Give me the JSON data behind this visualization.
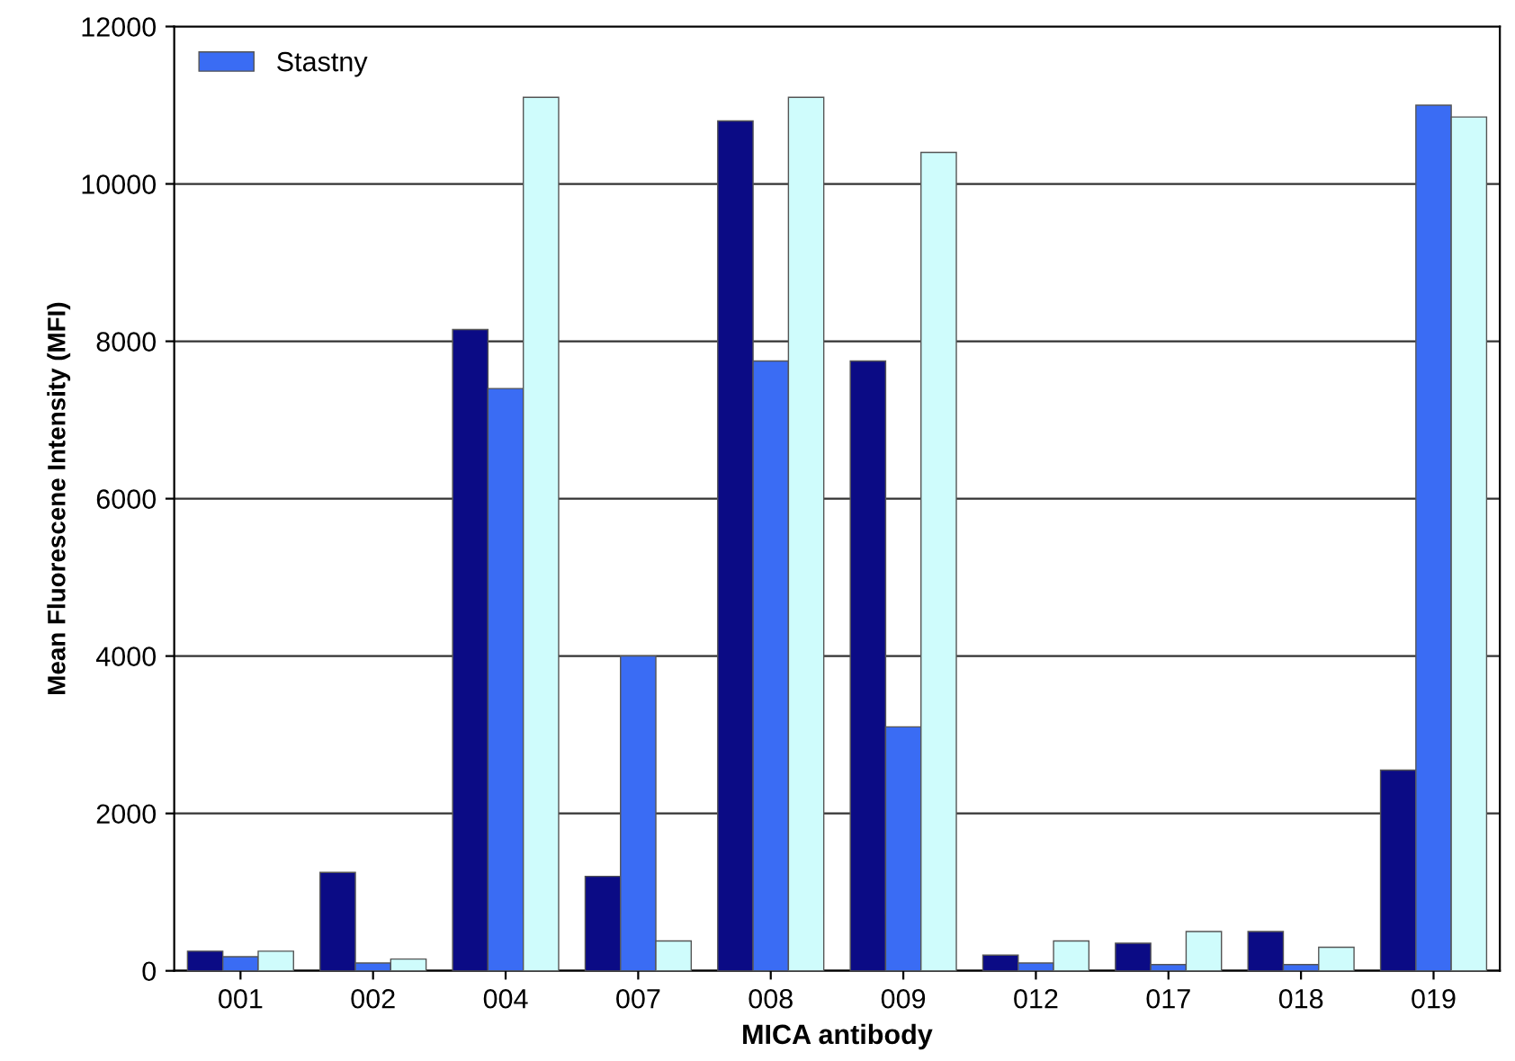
{
  "chart_data": {
    "type": "bar",
    "xlabel": "MICA antibody",
    "ylabel": "Mean Fluorescene Intensity (MFI)",
    "categories": [
      "001",
      "002",
      "004",
      "007",
      "008",
      "009",
      "012",
      "017",
      "018",
      "019"
    ],
    "series": [
      {
        "color": "#0b0b85",
        "values": [
          250,
          1250,
          8150,
          1200,
          10800,
          7750,
          200,
          350,
          500,
          2550
        ]
      },
      {
        "name": "Stastny",
        "color": "#3a6cf4",
        "values": [
          180,
          100,
          7400,
          4000,
          7750,
          3100,
          100,
          80,
          80,
          11000
        ]
      },
      {
        "color": "#cffcfc",
        "values": [
          250,
          150,
          11100,
          380,
          11100,
          10400,
          380,
          500,
          300,
          10850
        ]
      }
    ],
    "ylim": [
      0,
      12000
    ],
    "yticks": [
      0,
      2000,
      4000,
      6000,
      8000,
      10000,
      12000
    ],
    "grid": "y",
    "legend": "top left"
  }
}
